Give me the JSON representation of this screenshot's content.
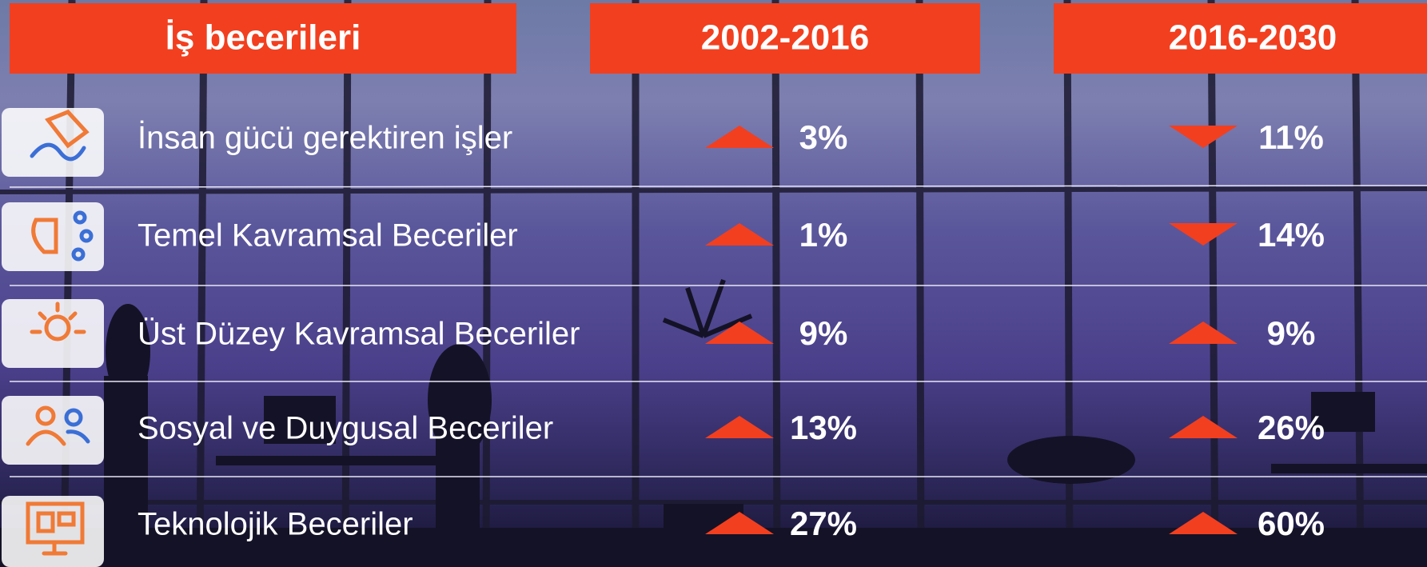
{
  "header": {
    "columns": [
      "İş becerileri",
      "2002-2016",
      "2016-2030"
    ]
  },
  "table": {
    "rows": [
      {
        "label": "İnsan gücü gerektiren işler",
        "cells": [
          {
            "direction": "up",
            "text": "3%"
          },
          {
            "direction": "down",
            "text": "11%"
          }
        ]
      },
      {
        "label": "Temel Kavramsal Beceriler",
        "cells": [
          {
            "direction": "up",
            "text": "1%"
          },
          {
            "direction": "down",
            "text": "14%"
          }
        ]
      },
      {
        "label": "Üst Düzey Kavramsal Beceriler",
        "cells": [
          {
            "direction": "up",
            "text": "9%"
          },
          {
            "direction": "up",
            "text": "9%"
          }
        ]
      },
      {
        "label": "Sosyal ve Duygusal Beceriler",
        "cells": [
          {
            "direction": "up",
            "text": "13%"
          },
          {
            "direction": "up",
            "text": "26%"
          }
        ]
      },
      {
        "label": "Teknolojik Beceriler",
        "cells": [
          {
            "direction": "up",
            "text": "27%"
          },
          {
            "direction": "up",
            "text": "60%"
          }
        ]
      }
    ]
  },
  "colors": {
    "accent": "#f23f1f",
    "text": "#ffffff"
  }
}
